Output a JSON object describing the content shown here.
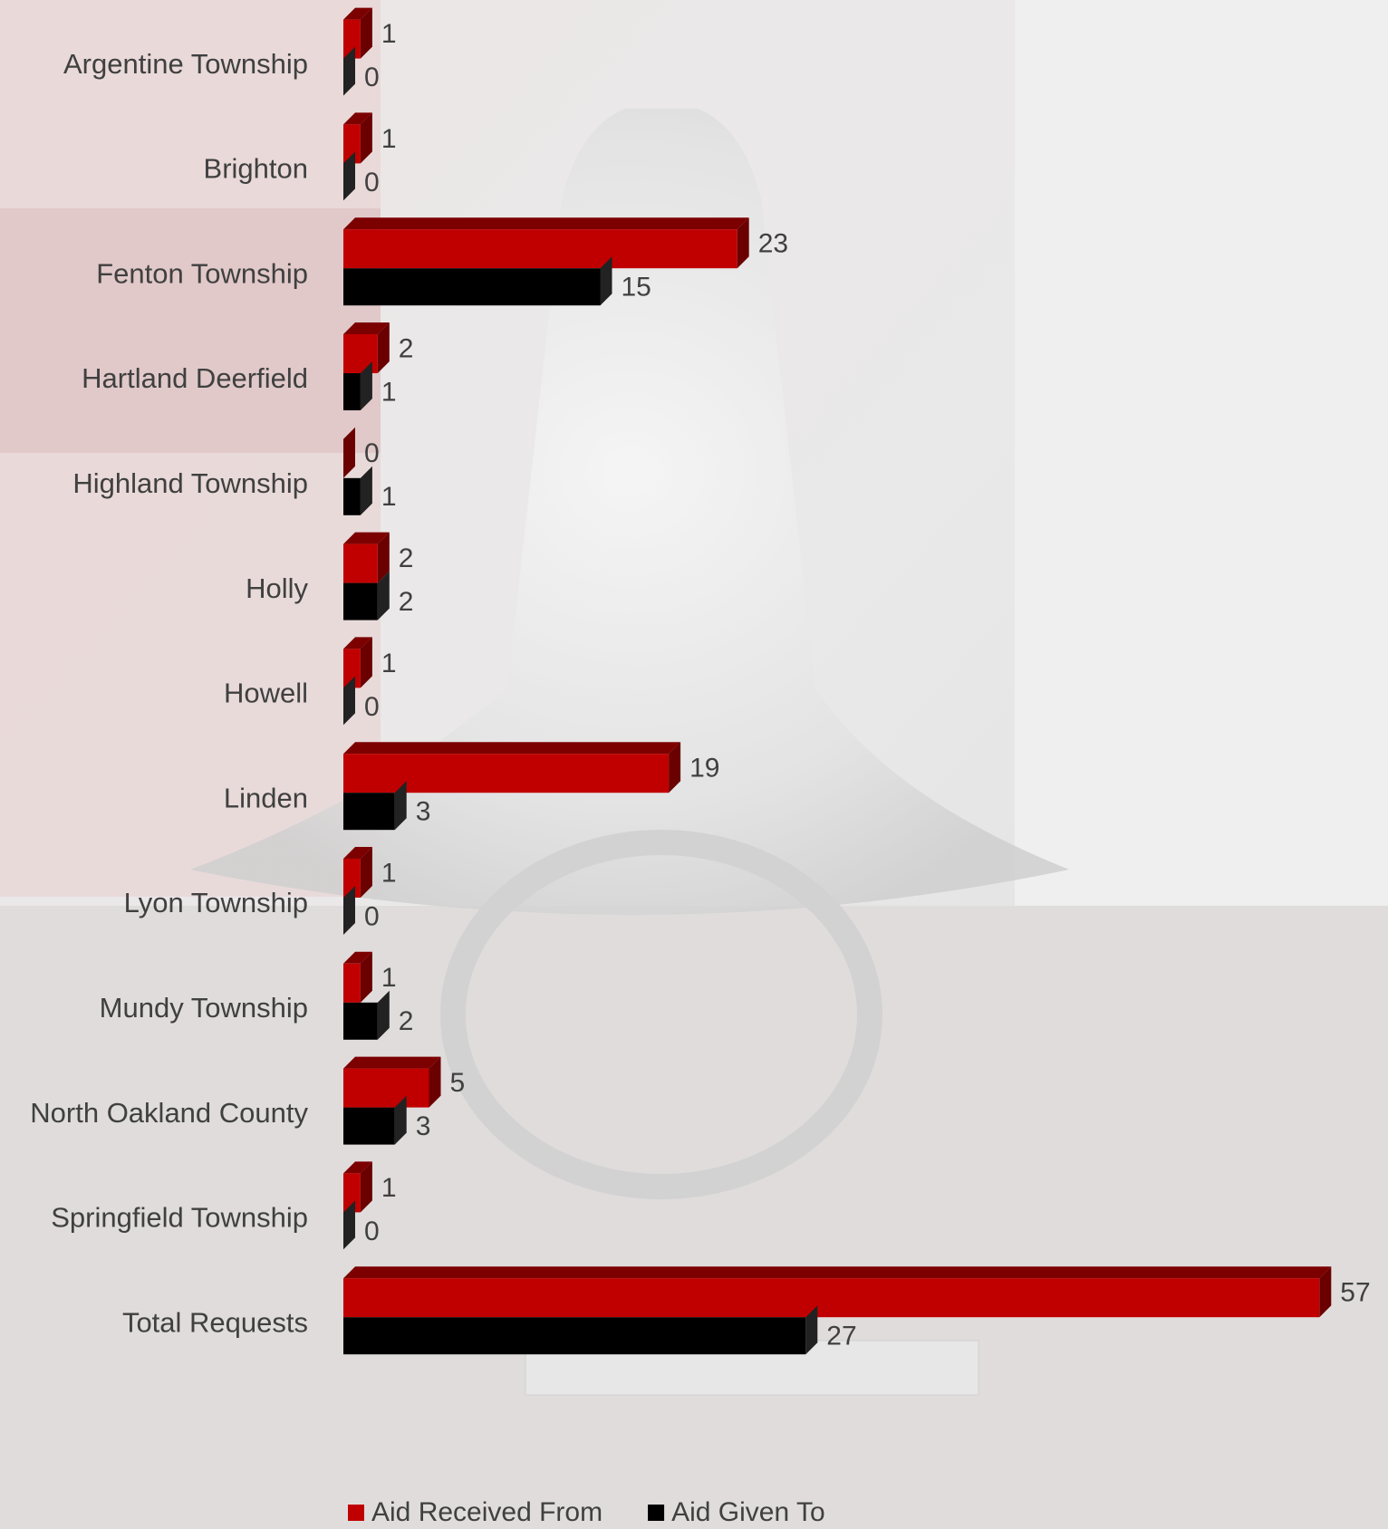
{
  "chart_data": {
    "type": "bar3d",
    "orientation": "horizontal",
    "categories": [
      "Argentine Township",
      "Brighton",
      "Fenton Township",
      "Hartland Deerfield",
      "Highland Township",
      "Holly",
      "Howell",
      "Linden",
      "Lyon Township",
      "Mundy Township",
      "North Oakland County",
      "Springfield Township",
      "Total Requests"
    ],
    "series": [
      {
        "name": "Aid Received From",
        "color": "#c00000",
        "values": [
          1,
          1,
          23,
          2,
          0,
          2,
          1,
          19,
          1,
          1,
          5,
          1,
          57
        ]
      },
      {
        "name": "Aid Given To",
        "color": "#000000",
        "values": [
          0,
          0,
          15,
          1,
          1,
          2,
          0,
          3,
          0,
          2,
          3,
          0,
          27
        ]
      }
    ],
    "legend": "bottom"
  }
}
